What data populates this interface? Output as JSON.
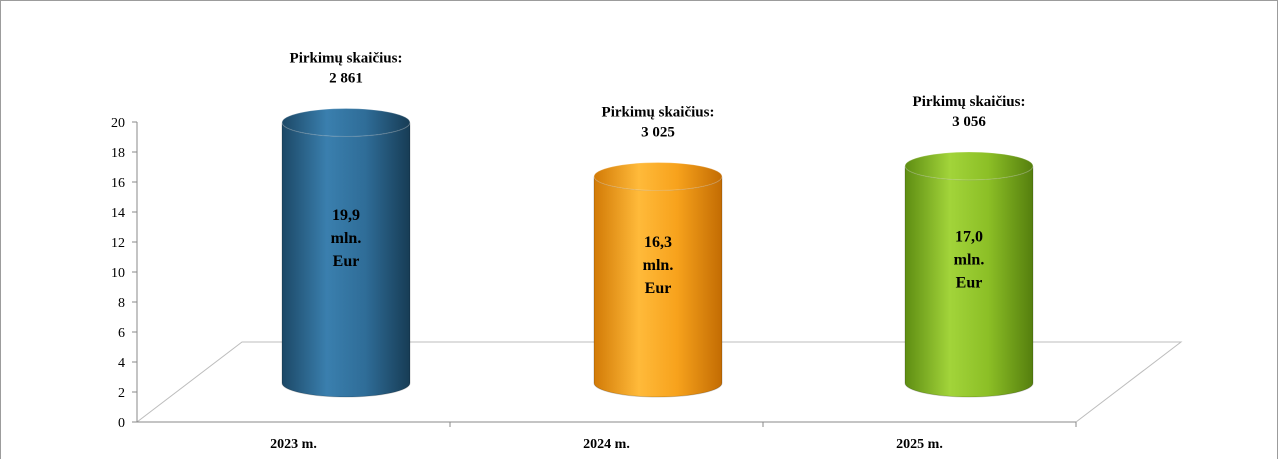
{
  "chart_data": {
    "type": "bar",
    "categories": [
      "2023 m.",
      "2024 m.",
      "2025 m."
    ],
    "values": [
      19.9,
      16.3,
      17.0
    ],
    "value_labels": [
      [
        "19,9",
        "mln.",
        "Eur"
      ],
      [
        "16,3",
        "mln.",
        "Eur"
      ],
      [
        "17,0",
        "mln.",
        "Eur"
      ]
    ],
    "top_labels": [
      [
        "Pirkimų skaičius:",
        "2 861"
      ],
      [
        "Pirkimų skaičius:",
        "3 025"
      ],
      [
        "Pirkimų skaičius:",
        "3 056"
      ]
    ],
    "colors": [
      "#2e6b93",
      "#f5a31a",
      "#8cbf26"
    ],
    "y_ticks": [
      "0",
      "2",
      "4",
      "6",
      "8",
      "10",
      "12",
      "14",
      "16",
      "18",
      "20"
    ],
    "ylim": [
      0,
      20
    ],
    "shape": "3d-cylinder",
    "grid": false,
    "legend": "none"
  }
}
